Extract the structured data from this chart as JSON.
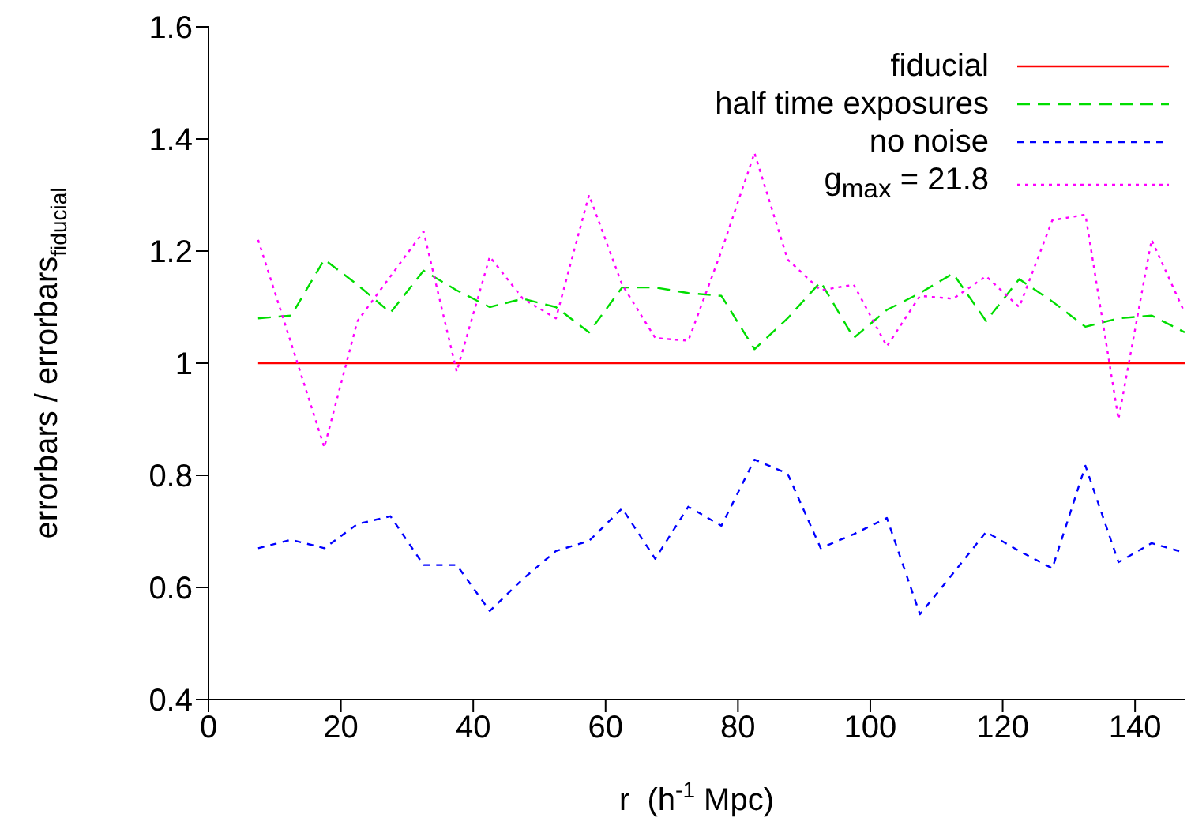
{
  "chart_data": {
    "type": "line",
    "xlabel": "r  (h$^{-1}$ Mpc)",
    "ylabel": "errorbars / errorbars$_{fiducial}$",
    "x": [
      7.5,
      12.5,
      17.5,
      22.5,
      27.5,
      32.5,
      37.5,
      42.5,
      47.5,
      52.5,
      57.5,
      62.5,
      67.5,
      72.5,
      77.5,
      82.5,
      87.5,
      92.5,
      97.5,
      102.5,
      107.5,
      112.5,
      117.5,
      122.5,
      127.5,
      132.5,
      137.5,
      142.5,
      147.5
    ],
    "series": [
      {
        "name": "fiducial",
        "color": "#ff0000",
        "line_style": "solid",
        "values": [
          1,
          1,
          1,
          1,
          1,
          1,
          1,
          1,
          1,
          1,
          1,
          1,
          1,
          1,
          1,
          1,
          1,
          1,
          1,
          1,
          1,
          1,
          1,
          1,
          1,
          1,
          1,
          1,
          1
        ]
      },
      {
        "name": "half time exposures",
        "color": "#00dd00",
        "line_style": "dashed",
        "values": [
          1.08,
          1.085,
          1.185,
          1.14,
          1.09,
          1.165,
          1.13,
          1.1,
          1.115,
          1.1,
          1.055,
          1.135,
          1.135,
          1.125,
          1.12,
          1.025,
          1.08,
          1.145,
          1.045,
          1.095,
          1.125,
          1.16,
          1.075,
          1.15,
          1.11,
          1.065,
          1.08,
          1.085,
          1.055
        ]
      },
      {
        "name": "no noise",
        "color": "#0000ff",
        "line_style": "dashed",
        "values": [
          0.67,
          0.685,
          0.67,
          0.713,
          0.727,
          0.64,
          0.64,
          0.558,
          0.615,
          0.665,
          0.683,
          0.741,
          0.651,
          0.744,
          0.71,
          0.828,
          0.803,
          0.67,
          0.695,
          0.724,
          0.552,
          0.625,
          0.699,
          0.665,
          0.634,
          0.817,
          0.645,
          0.679,
          0.662
        ]
      },
      {
        "name": "g$_{max}$ = 21.8",
        "color": "#ff00ff",
        "line_style": "dotted",
        "values": [
          1.22,
          1.035,
          0.85,
          1.075,
          1.155,
          1.235,
          0.985,
          1.19,
          1.115,
          1.08,
          1.3,
          1.14,
          1.045,
          1.04,
          1.2,
          1.375,
          1.185,
          1.13,
          1.14,
          1.03,
          1.12,
          1.115,
          1.155,
          1.1,
          1.255,
          1.265,
          0.9,
          1.22,
          1.09
        ]
      }
    ],
    "xlim": [
      0,
      147.5
    ],
    "xticks": [
      0,
      20,
      40,
      60,
      80,
      100,
      120,
      140
    ],
    "ylim": [
      0.4,
      1.6
    ],
    "yticks": [
      0.4,
      0.6,
      0.8,
      1,
      1.2,
      1.4,
      1.6
    ],
    "grid": false,
    "legend": "top right",
    "marker": "none"
  }
}
